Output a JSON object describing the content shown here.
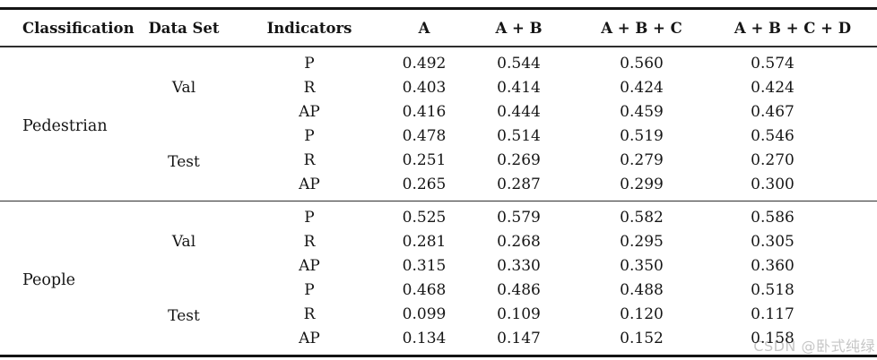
{
  "watermark": "CSDN @卧式纯绿",
  "table": {
    "columns": [
      "Classification",
      "Data Set",
      "Indicators",
      "A",
      "A + B",
      "A + B + C",
      "A + B + C + D"
    ],
    "sections": [
      {
        "classification": "Pedestrian",
        "groups": [
          {
            "dataset": "Val",
            "rows": [
              {
                "indicator": "P",
                "values": [
                  "0.492",
                  "0.544",
                  "0.560",
                  "0.574"
                ]
              },
              {
                "indicator": "R",
                "values": [
                  "0.403",
                  "0.414",
                  "0.424",
                  "0.424"
                ]
              },
              {
                "indicator": "AP",
                "values": [
                  "0.416",
                  "0.444",
                  "0.459",
                  "0.467"
                ]
              }
            ]
          },
          {
            "dataset": "Test",
            "rows": [
              {
                "indicator": "P",
                "values": [
                  "0.478",
                  "0.514",
                  "0.519",
                  "0.546"
                ]
              },
              {
                "indicator": "R",
                "values": [
                  "0.251",
                  "0.269",
                  "0.279",
                  "0.270"
                ]
              },
              {
                "indicator": "AP",
                "values": [
                  "0.265",
                  "0.287",
                  "0.299",
                  "0.300"
                ]
              }
            ]
          }
        ]
      },
      {
        "classification": "People",
        "groups": [
          {
            "dataset": "Val",
            "rows": [
              {
                "indicator": "P",
                "values": [
                  "0.525",
                  "0.579",
                  "0.582",
                  "0.586"
                ]
              },
              {
                "indicator": "R",
                "values": [
                  "0.281",
                  "0.268",
                  "0.295",
                  "0.305"
                ]
              },
              {
                "indicator": "AP",
                "values": [
                  "0.315",
                  "0.330",
                  "0.350",
                  "0.360"
                ]
              }
            ]
          },
          {
            "dataset": "Test",
            "rows": [
              {
                "indicator": "P",
                "values": [
                  "0.468",
                  "0.486",
                  "0.488",
                  "0.518"
                ]
              },
              {
                "indicator": "R",
                "values": [
                  "0.099",
                  "0.109",
                  "0.120",
                  "0.117"
                ]
              },
              {
                "indicator": "AP",
                "values": [
                  "0.134",
                  "0.147",
                  "0.152",
                  "0.158"
                ]
              }
            ]
          }
        ]
      }
    ]
  }
}
